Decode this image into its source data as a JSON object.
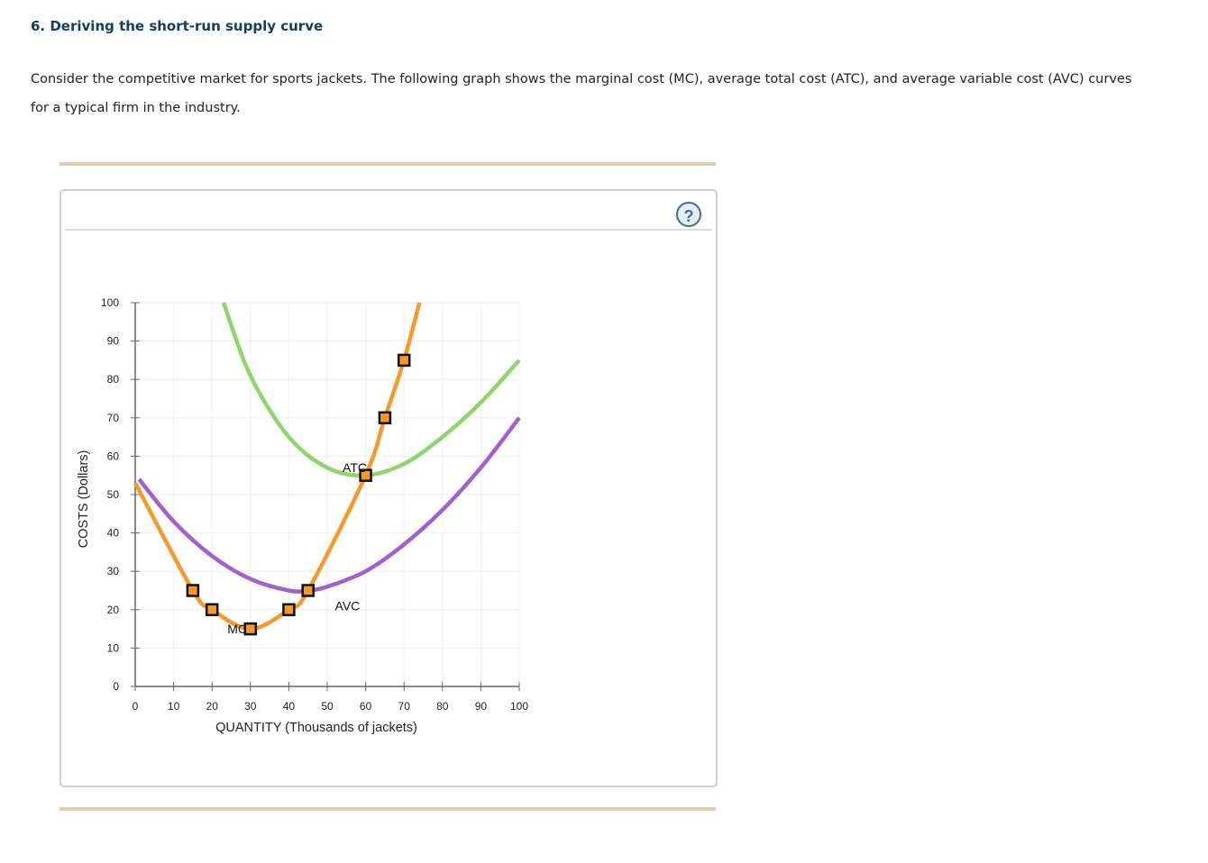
{
  "header": {
    "title": "6. Deriving the short-run supply curve"
  },
  "intro": {
    "text": "Consider the competitive market for sports jackets. The following graph shows the marginal cost (MC), average total cost (ATC), and average variable cost (AVC) curves for a typical firm in the industry."
  },
  "panel": {
    "help_label": "?"
  },
  "chart_data": {
    "type": "line",
    "title": "",
    "xlabel": "QUANTITY (Thousands of jackets)",
    "ylabel": "COSTS (Dollars)",
    "xlim": [
      0,
      100
    ],
    "ylim": [
      0,
      100
    ],
    "xticks": [
      0,
      10,
      20,
      30,
      40,
      50,
      60,
      70,
      80,
      90,
      100
    ],
    "yticks": [
      0,
      10,
      20,
      30,
      40,
      50,
      60,
      70,
      80,
      90,
      100
    ],
    "grid": true,
    "series": [
      {
        "name": "MC",
        "color": "#f7982a",
        "x": [
          0,
          15,
          20,
          30,
          40,
          45,
          60,
          65,
          70,
          74
        ],
        "y": [
          53,
          25,
          20,
          15,
          20,
          25,
          55,
          70,
          85,
          100
        ]
      },
      {
        "name": "ATC",
        "color": "#8fd66a",
        "x": [
          23,
          30,
          40,
          50,
          60,
          70,
          80,
          90,
          100
        ],
        "y": [
          100,
          81,
          65,
          57,
          55,
          58,
          65,
          74,
          85
        ]
      },
      {
        "name": "AVC",
        "color": "#a45fcf",
        "x": [
          1,
          10,
          20,
          30,
          40,
          45,
          50,
          60,
          70,
          80,
          90,
          100
        ],
        "y": [
          54,
          43,
          34,
          28,
          25,
          25,
          26,
          30,
          37,
          46,
          57,
          70
        ]
      }
    ],
    "markers": [
      {
        "x": 15,
        "y": 25
      },
      {
        "x": 20,
        "y": 20
      },
      {
        "x": 30,
        "y": 15
      },
      {
        "x": 40,
        "y": 20
      },
      {
        "x": 45,
        "y": 25
      },
      {
        "x": 60,
        "y": 55
      },
      {
        "x": 65,
        "y": 70
      },
      {
        "x": 70,
        "y": 85
      }
    ],
    "labels": [
      {
        "text": "MC",
        "x": 24,
        "y": 15
      },
      {
        "text": "AVC",
        "x": 52,
        "y": 21
      },
      {
        "text": "ATC",
        "x": 54,
        "y": 57
      }
    ]
  }
}
